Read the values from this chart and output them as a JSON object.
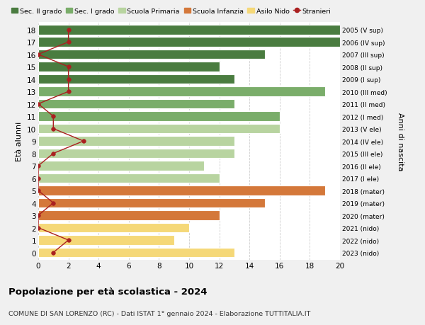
{
  "ages": [
    18,
    17,
    16,
    15,
    14,
    13,
    12,
    11,
    10,
    9,
    8,
    7,
    6,
    5,
    4,
    3,
    2,
    1,
    0
  ],
  "years": [
    "2005 (V sup)",
    "2006 (IV sup)",
    "2007 (III sup)",
    "2008 (II sup)",
    "2009 (I sup)",
    "2010 (III med)",
    "2011 (II med)",
    "2012 (I med)",
    "2013 (V ele)",
    "2014 (IV ele)",
    "2015 (III ele)",
    "2016 (II ele)",
    "2017 (I ele)",
    "2018 (mater)",
    "2019 (mater)",
    "2020 (mater)",
    "2021 (nido)",
    "2022 (nido)",
    "2023 (nido)"
  ],
  "bar_values": [
    20,
    20,
    15,
    12,
    13,
    19,
    13,
    16,
    16,
    13,
    13,
    11,
    12,
    19,
    15,
    12,
    10,
    9,
    13
  ],
  "stranieri": [
    2,
    2,
    0,
    2,
    2,
    2,
    0,
    1,
    1,
    3,
    1,
    0,
    0,
    0,
    1,
    0,
    0,
    2,
    1
  ],
  "colors": {
    "sec2": "#4a7c40",
    "sec1": "#7aad6a",
    "primaria": "#b8d4a0",
    "infanzia": "#d4783a",
    "nido": "#f5d878",
    "stranieri": "#aa2020"
  },
  "bar_color_keys": [
    "sec2",
    "sec2",
    "sec2",
    "sec2",
    "sec2",
    "sec1",
    "sec1",
    "sec1",
    "primaria",
    "primaria",
    "primaria",
    "primaria",
    "primaria",
    "infanzia",
    "infanzia",
    "infanzia",
    "nido",
    "nido",
    "nido"
  ],
  "legend_labels": [
    "Sec. II grado",
    "Sec. I grado",
    "Scuola Primaria",
    "Scuola Infanzia",
    "Asilo Nido",
    "Stranieri"
  ],
  "legend_colors": [
    "#4a7c40",
    "#7aad6a",
    "#b8d4a0",
    "#d4783a",
    "#f5d878",
    "#aa2020"
  ],
  "ylabel_left": "Età alunni",
  "ylabel_right": "Anni di nascita",
  "xlim": [
    0,
    20
  ],
  "xticks": [
    0,
    2,
    4,
    6,
    8,
    10,
    12,
    14,
    16,
    18,
    20
  ],
  "title_bold": "Popolazione per età scolastica - 2024",
  "subtitle": "COMUNE DI SAN LORENZO (RC) - Dati ISTAT 1° gennaio 2024 - Elaborazione TUTTITALIA.IT",
  "bg_color": "#f0f0f0",
  "plot_bg_color": "#ffffff",
  "grid_color": "#cccccc"
}
